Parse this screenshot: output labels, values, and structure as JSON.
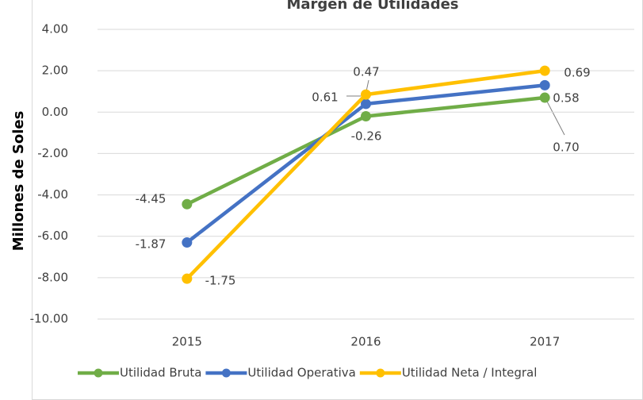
{
  "chart_data": {
    "type": "line",
    "title": "Margen de Utilidades",
    "y_axis_label": "Millones de Soles",
    "categories": [
      "2015",
      "2016",
      "2017"
    ],
    "series": [
      {
        "name": "Utilidad Bruta",
        "color": "#70ad47",
        "values": [
          -4.45,
          -0.2,
          0.7
        ]
      },
      {
        "name": "Utilidad Operativa",
        "color": "#4472c4",
        "values": [
          -6.3,
          0.4,
          1.3
        ]
      },
      {
        "name": "Utilidad Neta / Integral",
        "color": "#ffc000",
        "values": [
          -8.05,
          0.85,
          2.0
        ]
      }
    ],
    "annotations": [
      "-4.45",
      "-1.87",
      "-1.75",
      "0.47",
      "0.61",
      "-0.26",
      "0.69",
      "0.58",
      "0.70"
    ],
    "ylim": [
      -10,
      4
    ],
    "yticks": [
      {
        "value": 4,
        "label": "4.00"
      },
      {
        "value": 2,
        "label": "2.00"
      },
      {
        "value": 0,
        "label": "0.00"
      },
      {
        "value": -2,
        "label": "-2.00"
      },
      {
        "value": -4,
        "label": "-4.00"
      },
      {
        "value": -6,
        "label": "-6.00"
      },
      {
        "value": -8,
        "label": "-8.00"
      },
      {
        "value": -10,
        "label": "-10.00"
      }
    ],
    "grid": true
  }
}
